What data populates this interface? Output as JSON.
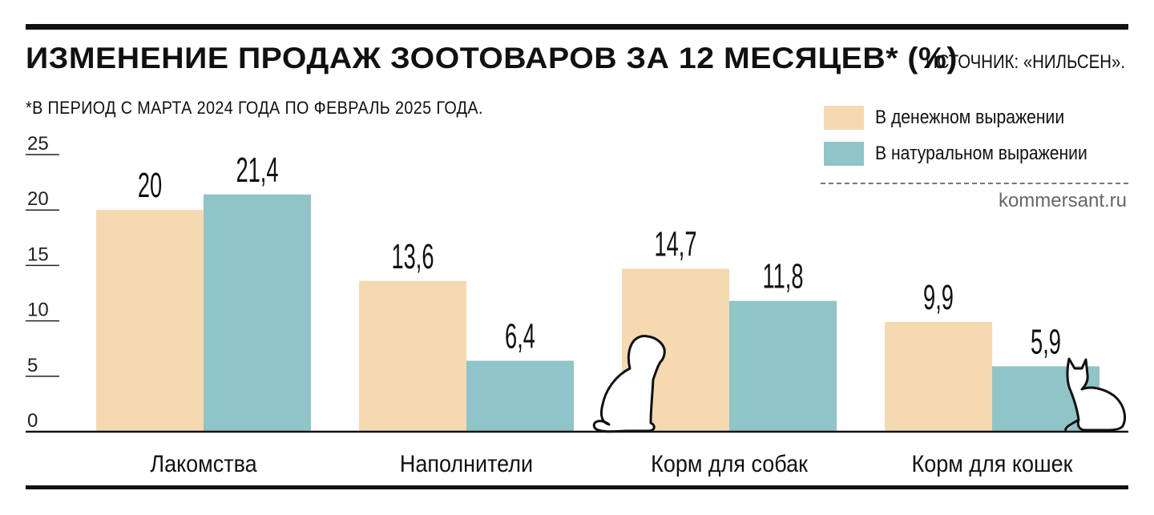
{
  "title": "ИЗМЕНЕНИЕ ПРОДАЖ ЗООТОВАРОВ ЗА 12 МЕСЯЦЕВ* (%)",
  "source": "ИСТОЧНИК: «НИЛЬСЕН».",
  "footnote": "*В ПЕРИОД С МАРТА 2024 ГОДА ПО ФЕВРАЛЬ 2025 ГОДА.",
  "credit": "kommersant.ru",
  "colors": {
    "money": "#f5d9b0",
    "natural": "#8fc4c8",
    "ink": "#111111"
  },
  "icons": [
    "dog-icon",
    "cat-icon"
  ],
  "chart_data": {
    "type": "bar",
    "title": "ИЗМЕНЕНИЕ ПРОДАЖ ЗООТОВАРОВ ЗА 12 МЕСЯЦЕВ* (%)",
    "categories": [
      "Лакомства",
      "Наполнители",
      "Корм для собак",
      "Корм для кошек"
    ],
    "series": [
      {
        "name": "В денежном выражении",
        "values": [
          20,
          13.6,
          14.7,
          9.9
        ],
        "labels": [
          "20",
          "13,6",
          "14,7",
          "9,9"
        ]
      },
      {
        "name": "В натуральном выражении",
        "values": [
          21.4,
          6.4,
          11.8,
          5.9
        ],
        "labels": [
          "21,4",
          "6,4",
          "11,8",
          "5,9"
        ]
      }
    ],
    "yticks": [
      "0",
      "5",
      "10",
      "15",
      "20",
      "25"
    ],
    "ylim": [
      0,
      25
    ],
    "xlabel": "",
    "ylabel": "",
    "grid": false,
    "legend_position": "top-right"
  }
}
